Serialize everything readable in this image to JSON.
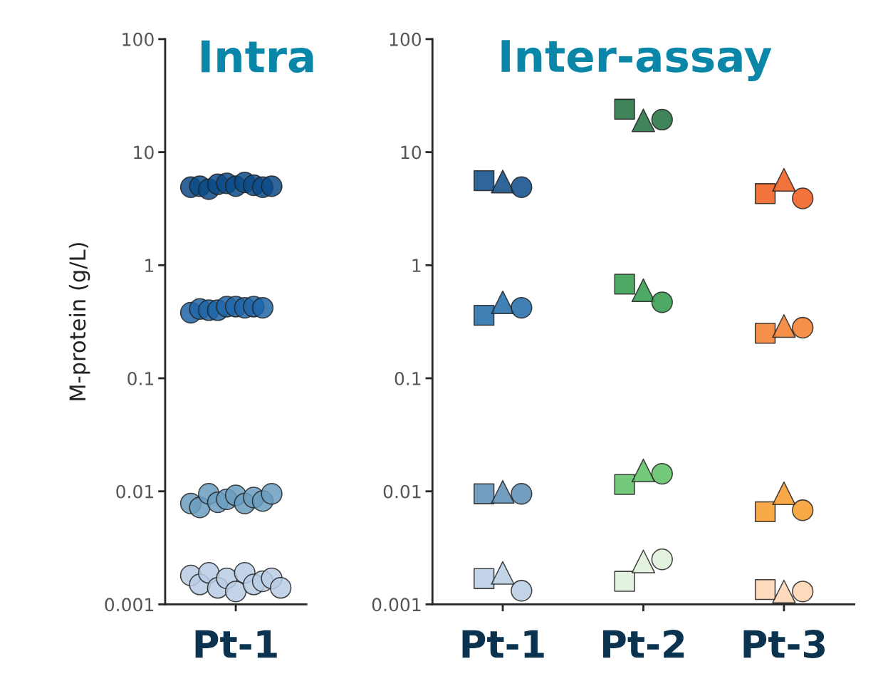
{
  "chart_data": [
    {
      "type": "scatter",
      "title": "Intra",
      "ylabel": "M-protein (g/L)",
      "log": "y",
      "grid": false,
      "legend": false,
      "marker": "circle",
      "categories": [
        "Pt-1"
      ],
      "ylim": [
        0.001,
        100
      ],
      "yticks": [
        0.001,
        0.01,
        0.1,
        1,
        10,
        100
      ],
      "series": [
        {
          "x": [
            "Pt-1",
            "Pt-1",
            "Pt-1",
            "Pt-1"
          ],
          "values": [
            4.9,
            0.38,
            0.0078,
            0.0018
          ],
          "colors": [
            "#0b4a86",
            "#1f65a6",
            "#6a9cc0",
            "#b8cce4"
          ]
        },
        {
          "x": [
            "Pt-1",
            "Pt-1",
            "Pt-1",
            "Pt-1"
          ],
          "values": [
            5.0,
            0.41,
            0.0072,
            0.0015
          ],
          "colors": [
            "#0b4a86",
            "#1f65a6",
            "#6a9cc0",
            "#b8cce4"
          ]
        },
        {
          "x": [
            "Pt-1",
            "Pt-1",
            "Pt-1",
            "Pt-1"
          ],
          "values": [
            4.7,
            0.4,
            0.0095,
            0.0019
          ],
          "colors": [
            "#0b4a86",
            "#1f65a6",
            "#6a9cc0",
            "#b8cce4"
          ]
        },
        {
          "x": [
            "Pt-1",
            "Pt-1",
            "Pt-1",
            "Pt-1"
          ],
          "values": [
            5.2,
            0.4,
            0.008,
            0.0014
          ],
          "colors": [
            "#0b4a86",
            "#1f65a6",
            "#6a9cc0",
            "#b8cce4"
          ]
        },
        {
          "x": [
            "Pt-1",
            "Pt-1",
            "Pt-1",
            "Pt-1"
          ],
          "values": [
            5.3,
            0.43,
            0.0085,
            0.0017
          ],
          "colors": [
            "#0b4a86",
            "#1f65a6",
            "#6a9cc0",
            "#b8cce4"
          ]
        },
        {
          "x": [
            "Pt-1",
            "Pt-1",
            "Pt-1",
            "Pt-1"
          ],
          "values": [
            5.0,
            0.43,
            0.0092,
            0.0013
          ],
          "colors": [
            "#0b4a86",
            "#1f65a6",
            "#6a9cc0",
            "#b8cce4"
          ]
        },
        {
          "x": [
            "Pt-1",
            "Pt-1",
            "Pt-1",
            "Pt-1"
          ],
          "values": [
            5.4,
            0.42,
            0.0078,
            0.0019
          ],
          "colors": [
            "#0b4a86",
            "#1f65a6",
            "#6a9cc0",
            "#b8cce4"
          ]
        },
        {
          "x": [
            "Pt-1",
            "Pt-1",
            "Pt-1",
            "Pt-1"
          ],
          "values": [
            5.1,
            0.43,
            0.0088,
            0.0015
          ],
          "colors": [
            "#0b4a86",
            "#1f65a6",
            "#6a9cc0",
            "#b8cce4"
          ]
        },
        {
          "x": [
            "Pt-1",
            "Pt-1",
            "Pt-1",
            "Pt-1"
          ],
          "values": [
            4.9,
            0.42,
            0.0082,
            0.0016
          ],
          "colors": [
            "#0b4a86",
            "#1f65a6",
            "#6a9cc0",
            "#b8cce4"
          ]
        },
        {
          "x": [
            "Pt-1",
            "Pt-1",
            "Pt-1",
            "Pt-1"
          ],
          "values": [
            5.0,
            null,
            0.0095,
            0.0017
          ],
          "colors": [
            "#0b4a86",
            "#1f65a6",
            "#6a9cc0",
            "#b8cce4"
          ]
        },
        {
          "x": [
            "Pt-1",
            "Pt-1",
            "Pt-1",
            "Pt-1"
          ],
          "values": [
            null,
            null,
            null,
            0.0014
          ],
          "colors": [
            "#0b4a86",
            "#1f65a6",
            "#6a9cc0",
            "#b8cce4"
          ]
        }
      ]
    },
    {
      "type": "scatter",
      "title": "Inter-assay",
      "log": "y",
      "grid": false,
      "legend": false,
      "categories": [
        "Pt-1",
        "Pt-2",
        "Pt-3"
      ],
      "ylim": [
        0.001,
        100
      ],
      "yticks": [
        0.001,
        0.01,
        0.1,
        1,
        10,
        100
      ],
      "series": [
        {
          "marker": "square",
          "x": [
            "Pt-1",
            "Pt-1",
            "Pt-1",
            "Pt-1",
            "Pt-2",
            "Pt-2",
            "Pt-2",
            "Pt-2",
            "Pt-3",
            "Pt-3",
            "Pt-3",
            "Pt-3"
          ],
          "values": [
            5.6,
            0.36,
            0.0095,
            0.00169,
            24.0,
            0.68,
            0.0115,
            0.0016,
            4.3,
            0.25,
            0.0066,
            0.00135
          ],
          "colors": [
            "#0b4a86",
            "#1f6aa8",
            "#5b8db5",
            "#b8cce4",
            "#1e6e3c",
            "#2f9a4a",
            "#5cbf63",
            "#dff0da",
            "#f05a1a",
            "#f37b2a",
            "#f89a28",
            "#fdd3b0"
          ]
        },
        {
          "marker": "triangle",
          "x": [
            "Pt-1",
            "Pt-1",
            "Pt-1",
            "Pt-1",
            "Pt-2",
            "Pt-2",
            "Pt-2",
            "Pt-2",
            "Pt-3",
            "Pt-3",
            "Pt-3",
            "Pt-3"
          ],
          "values": [
            5.5,
            0.47,
            0.0099,
            0.0019,
            19.1,
            0.6,
            0.0153,
            0.0024,
            5.7,
            0.29,
            0.0096,
            0.0013
          ],
          "colors": [
            "#0b4a86",
            "#1f6aa8",
            "#5b8db5",
            "#b8cce4",
            "#1e6e3c",
            "#2f9a4a",
            "#5cbf63",
            "#dff0da",
            "#f05a1a",
            "#f37b2a",
            "#f89a28",
            "#fdd3b0"
          ]
        },
        {
          "marker": "circle",
          "x": [
            "Pt-1",
            "Pt-1",
            "Pt-1",
            "Pt-1",
            "Pt-2",
            "Pt-2",
            "Pt-2",
            "Pt-2",
            "Pt-3",
            "Pt-3",
            "Pt-3",
            "Pt-3"
          ],
          "values": [
            4.9,
            0.42,
            0.0095,
            0.00132,
            19.4,
            0.47,
            0.0143,
            0.0025,
            3.9,
            0.28,
            0.0068,
            0.0013
          ],
          "colors": [
            "#0b4a86",
            "#1f6aa8",
            "#5b8db5",
            "#b8cce4",
            "#1e6e3c",
            "#2f9a4a",
            "#5cbf63",
            "#dff0da",
            "#f05a1a",
            "#f37b2a",
            "#f89a28",
            "#fdd3b0"
          ]
        }
      ]
    }
  ]
}
